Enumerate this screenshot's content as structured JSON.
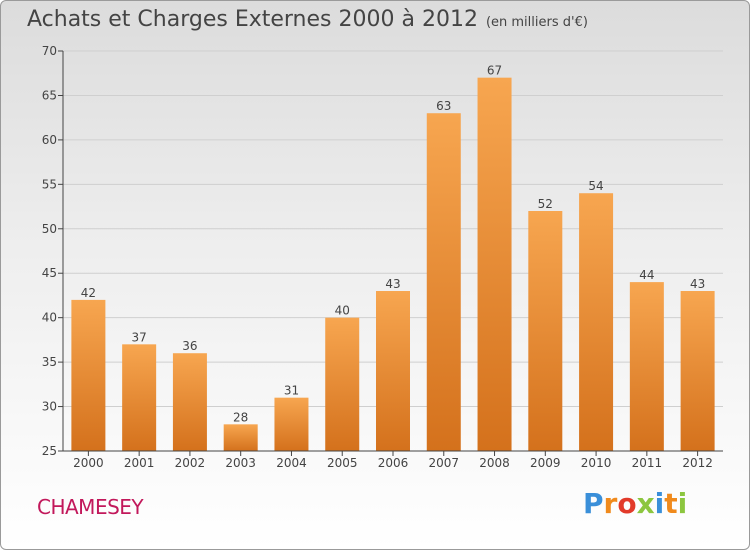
{
  "header": {
    "title": "Achats et Charges Externes 2000 à 2012",
    "unit": "(en milliers d'€)"
  },
  "footer": {
    "commune": "CHAMESEY",
    "logo": "Proxiti",
    "logo_colors": [
      "#3a8fd9",
      "#f08a1c",
      "#e23a2a",
      "#8cc63f",
      "#3a8fd9",
      "#f08a1c",
      "#8cc63f"
    ]
  },
  "colors": {
    "bar_light": "#f7a650",
    "bar_dark": "#d4711c",
    "axis": "#444444",
    "grid": "#cfcfcf"
  },
  "chart_data": {
    "type": "bar",
    "categories": [
      "2000",
      "2001",
      "2002",
      "2003",
      "2004",
      "2005",
      "2006",
      "2007",
      "2008",
      "2009",
      "2010",
      "2011",
      "2012"
    ],
    "values": [
      42,
      37,
      36,
      28,
      31,
      40,
      43,
      63,
      67,
      52,
      54,
      44,
      43
    ],
    "ylim": [
      25,
      70
    ],
    "yticks": [
      25,
      30,
      35,
      40,
      45,
      50,
      55,
      60,
      65,
      70
    ],
    "grid": true,
    "title": "Achats et Charges Externes 2000 à 2012",
    "xlabel": "",
    "ylabel": ""
  }
}
